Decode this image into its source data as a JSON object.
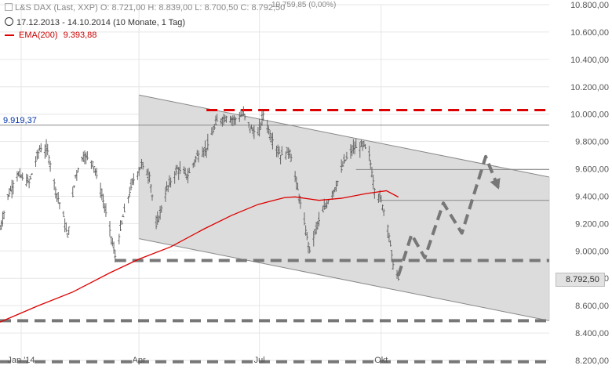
{
  "header": {
    "instrument": "L&S DAX (Last, XXP)",
    "ohlc": "O: 8.721,00  H: 8.839,00  L: 8.700,50  C: 8.792,50",
    "period": "17.12.2013 - 14.10.2014 (10 Monate, 1 Tag)",
    "ema_label": "EMA(200)",
    "ema_value": "9.393,88",
    "top_readout": "10.759,85 (0,00%)"
  },
  "price_badge": "8.792,50",
  "level_label": "9.919,37",
  "chart_data": {
    "type": "candlestick",
    "ylim": [
      8200,
      10800
    ],
    "yticks": [
      "8.200,00",
      "8.400,00",
      "8.600,00",
      "8.800,00",
      "9.000,00",
      "9.200,00",
      "9.400,00",
      "9.600,00",
      "9.800,00",
      "10.000,00",
      "10.200,00",
      "10.400,00",
      "10.600,00",
      "10.800,00"
    ],
    "xticks": [
      {
        "label": "Jan '14",
        "date": "2014-01-02"
      },
      {
        "label": "Apr",
        "date": "2014-04-01"
      },
      {
        "label": "Jul",
        "date": "2014-07-01"
      },
      {
        "label": "Okt",
        "date": "2014-10-01"
      }
    ],
    "x_range": [
      "2013-12-17",
      "2015-02-05"
    ],
    "price_path": [
      [
        "2013-12-17",
        9160
      ],
      [
        "2013-12-23",
        9400
      ],
      [
        "2013-12-30",
        9560
      ],
      [
        "2014-01-08",
        9500
      ],
      [
        "2014-01-16",
        9750
      ],
      [
        "2014-01-22",
        9730
      ],
      [
        "2014-01-28",
        9450
      ],
      [
        "2014-02-03",
        9250
      ],
      [
        "2014-02-06",
        9100
      ],
      [
        "2014-02-12",
        9550
      ],
      [
        "2014-02-18",
        9700
      ],
      [
        "2014-02-25",
        9650
      ],
      [
        "2014-03-03",
        9450
      ],
      [
        "2014-03-10",
        9150
      ],
      [
        "2014-03-14",
        8960
      ],
      [
        "2014-03-20",
        9250
      ],
      [
        "2014-03-27",
        9500
      ],
      [
        "2014-04-03",
        9630
      ],
      [
        "2014-04-09",
        9550
      ],
      [
        "2014-04-14",
        9180
      ],
      [
        "2014-04-22",
        9450
      ],
      [
        "2014-04-30",
        9600
      ],
      [
        "2014-05-08",
        9550
      ],
      [
        "2014-05-15",
        9700
      ],
      [
        "2014-05-22",
        9750
      ],
      [
        "2014-05-30",
        9950
      ],
      [
        "2014-06-06",
        9980
      ],
      [
        "2014-06-12",
        9960
      ],
      [
        "2014-06-19",
        10000
      ],
      [
        "2014-06-24",
        9900
      ],
      [
        "2014-06-30",
        9850
      ],
      [
        "2014-07-04",
        10000
      ],
      [
        "2014-07-10",
        9830
      ],
      [
        "2014-07-17",
        9700
      ],
      [
        "2014-07-24",
        9730
      ],
      [
        "2014-07-31",
        9400
      ],
      [
        "2014-08-06",
        9100
      ],
      [
        "2014-08-08",
        9000
      ],
      [
        "2014-08-14",
        9200
      ],
      [
        "2014-08-21",
        9350
      ],
      [
        "2014-08-28",
        9480
      ],
      [
        "2014-09-03",
        9650
      ],
      [
        "2014-09-10",
        9750
      ],
      [
        "2014-09-18",
        9770
      ],
      [
        "2014-09-22",
        9700
      ],
      [
        "2014-09-26",
        9450
      ],
      [
        "2014-10-01",
        9370
      ],
      [
        "2014-10-06",
        9180
      ],
      [
        "2014-10-10",
        8900
      ],
      [
        "2014-10-14",
        8793
      ]
    ],
    "ema200": [
      [
        "2013-12-17",
        8480
      ],
      [
        "2014-01-15",
        8600
      ],
      [
        "2014-02-10",
        8700
      ],
      [
        "2014-03-10",
        8840
      ],
      [
        "2014-04-01",
        8940
      ],
      [
        "2014-04-25",
        9030
      ],
      [
        "2014-05-20",
        9160
      ],
      [
        "2014-06-10",
        9260
      ],
      [
        "2014-06-30",
        9340
      ],
      [
        "2014-07-20",
        9390
      ],
      [
        "2014-07-28",
        9395
      ],
      [
        "2014-08-15",
        9370
      ],
      [
        "2014-09-01",
        9385
      ],
      [
        "2014-09-20",
        9420
      ],
      [
        "2014-10-05",
        9440
      ],
      [
        "2014-10-14",
        9394
      ]
    ],
    "channel": {
      "upper": [
        [
          "2014-04-01",
          10140
        ],
        [
          "2015-02-05",
          9540
        ]
      ],
      "lower": [
        [
          "2014-04-01",
          9090
        ],
        [
          "2015-02-05",
          8490
        ]
      ]
    },
    "resistance_red": {
      "value": 10030,
      "from": "2014-05-22",
      "to": "2015-02-05"
    },
    "support_lines_dashed": [
      {
        "value": 8930,
        "from": "2014-03-14",
        "to": "2015-02-05"
      },
      {
        "value": 8490,
        "from": "2013-12-17",
        "to": "2015-02-05"
      },
      {
        "value": 8190,
        "from": "2013-12-17",
        "to": "2015-02-05"
      }
    ],
    "horizontal_lines": [
      {
        "value": 9919.37,
        "from": "2013-12-17",
        "to": "2015-02-05"
      },
      {
        "value": 9595,
        "from": "2014-09-12",
        "to": "2015-02-05"
      },
      {
        "value": 9370,
        "from": "2014-10-01",
        "to": "2015-02-05"
      }
    ],
    "forecast_path": [
      [
        "2014-10-14",
        8820
      ],
      [
        "2014-10-24",
        9120
      ],
      [
        "2014-11-03",
        8950
      ],
      [
        "2014-11-17",
        9350
      ],
      [
        "2014-12-01",
        9130
      ],
      [
        "2014-12-19",
        9690
      ],
      [
        "2014-12-29",
        9450
      ]
    ],
    "last_price": 8792.5,
    "colors": {
      "candle": "#666666",
      "ema": "#dd0000",
      "resistance": "#dd0000",
      "dashed": "#777777",
      "channel_fill": "#dcdcdc",
      "channel_stroke": "#888888",
      "level": "#888888",
      "level_label": "#0033aa",
      "grid": "#e6e6e6"
    },
    "grid": true,
    "legend": "top-left"
  }
}
